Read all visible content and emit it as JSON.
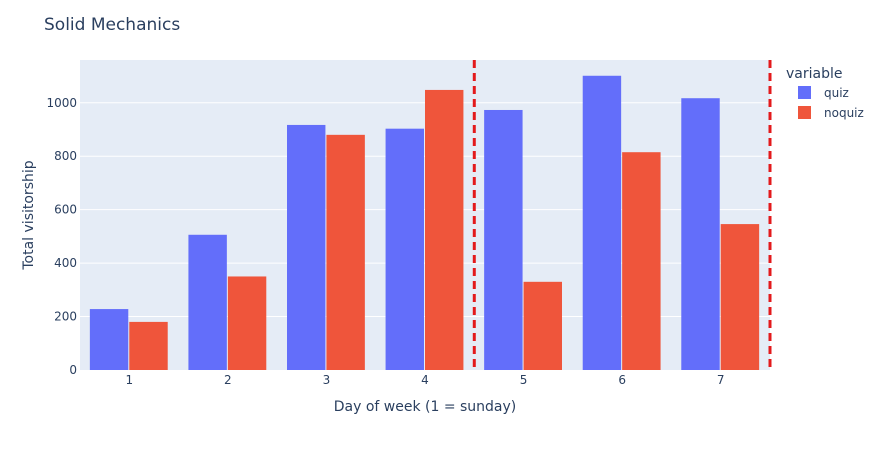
{
  "chart_data": {
    "type": "bar",
    "title": "Solid Mechanics",
    "xlabel": "Day of week (1 = sunday)",
    "ylabel": "Total visitorship",
    "categories": [
      "1",
      "2",
      "3",
      "4",
      "5",
      "6",
      "7"
    ],
    "series": [
      {
        "name": "quiz",
        "color": "#636efa",
        "values": [
          228,
          506,
          917,
          903,
          973,
          1101,
          1017
        ]
      },
      {
        "name": "noquiz",
        "color": "#ef553b",
        "values": [
          180,
          350,
          880,
          1048,
          330,
          815,
          546
        ]
      }
    ],
    "ylim": [
      0,
      1160
    ],
    "yticks": [
      0,
      200,
      400,
      600,
      800,
      1000
    ],
    "legend": {
      "title": "variable",
      "placement": "top-right"
    },
    "reference_lines": [
      {
        "orientation": "vertical",
        "x": 4.5,
        "color": "#e31a1c",
        "style": "dashed"
      },
      {
        "orientation": "vertical",
        "x": 7.5,
        "color": "#e31a1c",
        "style": "dashed"
      }
    ],
    "grid": true,
    "plot_background": "#e5ecf6"
  }
}
